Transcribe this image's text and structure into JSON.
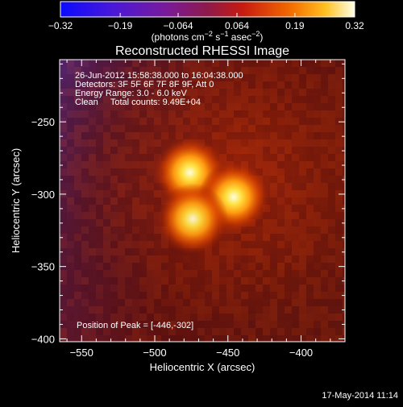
{
  "chart_data": {
    "type": "heatmap",
    "title": "Reconstructed RHESSI Image",
    "xlabel": "Heliocentric X (arcsec)",
    "ylabel": "Heliocentric Y (arcsec)",
    "xlim": [
      -565,
      -370
    ],
    "ylim": [
      -402,
      -207
    ],
    "x_ticks": [
      -550,
      -500,
      -450,
      -400
    ],
    "y_ticks": [
      -250,
      -300,
      -350,
      -400
    ],
    "x_tick_labels": [
      "−550",
      "−500",
      "−450",
      "−400"
    ],
    "y_tick_labels": [
      "−250",
      "−300",
      "−350",
      "−400"
    ],
    "colorbar": {
      "range": [
        -0.32,
        0.32
      ],
      "ticks": [
        -0.32,
        -0.19,
        -0.064,
        0.064,
        0.19,
        0.32
      ],
      "tick_labels": [
        "−0.32",
        "−0.19",
        "−0.064",
        "0.064",
        "0.19",
        "0.32"
      ],
      "unit_main": "(photons cm",
      "unit_exp1": "−2",
      "unit_mid": " s",
      "unit_exp2": "−1",
      "unit_mid2": " asec",
      "unit_exp3": "−2",
      "unit_end": ")"
    },
    "sources": [
      {
        "x": -476,
        "y": -285,
        "peak": 1.0
      },
      {
        "x": -446,
        "y": -302,
        "peak": 1.0
      },
      {
        "x": -474,
        "y": -317,
        "peak": 0.95
      }
    ],
    "info_lines": [
      "26-Jun-2012 15:58:38.000 to 16:04:38.000",
      "Detectors: 3F 5F 6F 7F 8F 9F, Att 0",
      "Energy Range: 3.0 - 6.0 keV",
      "Clean     Total counts: 9.49E+04"
    ],
    "peak_label": "Position of Peak = [-446,-302]"
  },
  "footer": {
    "date": "17-May-2014 11:14"
  }
}
